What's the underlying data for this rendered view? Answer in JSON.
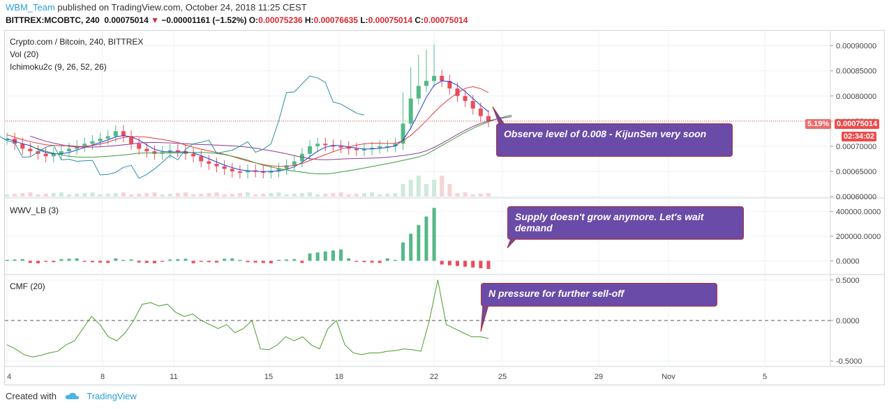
{
  "header": {
    "user": "WBM_Team",
    "published": "published on TradingView.com, October 24, 2018 11:25 CEST",
    "symbol": "BITTREX:MCOBTC, 240",
    "last": "0.00075014",
    "change": "−0.00001161 (−1.52%)",
    "o_label": "O:",
    "o": "0.00075236",
    "h_label": "H:",
    "h": "0.00076635",
    "l_label": "L:",
    "l": "0.00075014",
    "c_label": "C:",
    "c": "0.00075014"
  },
  "legends": {
    "main": "Crypto.com / Bitcoin, 240, BITTREX",
    "vol": "Vol (20)",
    "ichimoku": "Ichimoku2c (9, 26, 52, 26)",
    "wwv": "WWV_LB (3)",
    "cmf": "CMF (20)"
  },
  "price_tags": {
    "pct": "5.19%",
    "price": "0.00075014",
    "countdown": "02:34:02"
  },
  "callouts": {
    "c1": "Observe level of 0.008 - KijunSen very soon",
    "c2": "Supply doesn't grow anymore. Let's wait demand",
    "c3": "N pressure for further sell-off"
  },
  "footer": {
    "created": "Created with",
    "brand": "TradingView"
  },
  "colors": {
    "up": "#53b987",
    "down": "#eb4d5c",
    "tenkan": "#1f3fd6",
    "kijun": "#e23b3b",
    "chikou": "#2a8fa0",
    "spanA": "#3c9a3c",
    "spanB": "#8e3a8e",
    "cmf": "#4c9a2a",
    "callout": "#6a4ba8"
  },
  "chart_data": [
    {
      "type": "candlestick",
      "title": "Crypto.com / Bitcoin, 240, BITTREX",
      "x_ticks": [
        "4",
        "8",
        "11",
        "15",
        "18",
        "22",
        "25",
        "29",
        "Nov",
        "5"
      ],
      "ylim": [
        0.0006,
        0.00093
      ],
      "y_ticks": [
        "0.00090000",
        "0.00085000",
        "0.00080000",
        "0.00075000",
        "0.00070000",
        "0.00065000",
        "0.00060000"
      ],
      "last_price": 0.00075014,
      "close_series": [
        0.000715,
        0.000705,
        0.000695,
        0.00069,
        0.000685,
        0.00068,
        0.000685,
        0.00069,
        0.000695,
        0.0007,
        0.000705,
        0.00071,
        0.000715,
        0.00072,
        0.00073,
        0.00072,
        0.000705,
        0.000695,
        0.00069,
        0.000685,
        0.000688,
        0.000692,
        0.00069,
        0.000685,
        0.00068,
        0.00067,
        0.000665,
        0.00066,
        0.000655,
        0.00065,
        0.000648,
        0.000652,
        0.00065,
        0.000648,
        0.00065,
        0.000655,
        0.000662,
        0.00067,
        0.000685,
        0.0007,
        0.000705,
        0.000702,
        0.0007,
        0.000698,
        0.000695,
        0.000692,
        0.000694,
        0.000697,
        0.0007,
        0.0007,
        0.000705,
        0.000745,
        0.000795,
        0.00082,
        0.00083,
        0.00084,
        0.00083,
        0.000815,
        0.0008,
        0.00079,
        0.000775,
        0.00076,
        0.00075014
      ]
    },
    {
      "type": "bar",
      "title": "WWV_LB (3)",
      "y_ticks": [
        "400000.0000",
        "200000.0000",
        "0.0000"
      ],
      "ylim": [
        -100000,
        500000
      ]
    },
    {
      "type": "line",
      "title": "CMF (20)",
      "y_ticks": [
        "0.5000",
        "0.0000",
        "-0.5000"
      ],
      "ylim": [
        -0.55,
        0.55
      ],
      "values": [
        -0.3,
        -0.35,
        -0.42,
        -0.45,
        -0.43,
        -0.4,
        -0.38,
        -0.3,
        -0.25,
        -0.1,
        0.05,
        -0.05,
        -0.2,
        -0.25,
        -0.15,
        0.0,
        0.2,
        0.22,
        0.18,
        0.2,
        0.1,
        0.05,
        0.08,
        0.0,
        -0.05,
        -0.1,
        -0.05,
        -0.15,
        -0.1,
        0.0,
        -0.35,
        -0.36,
        -0.3,
        -0.2,
        -0.25,
        -0.2,
        -0.3,
        -0.35,
        -0.1,
        0.0,
        -0.3,
        -0.4,
        -0.42,
        -0.4,
        -0.4,
        -0.38,
        -0.37,
        -0.35,
        -0.36,
        -0.38,
        0.0,
        0.5,
        -0.05,
        -0.1,
        -0.15,
        -0.2,
        -0.2,
        -0.22
      ]
    }
  ]
}
